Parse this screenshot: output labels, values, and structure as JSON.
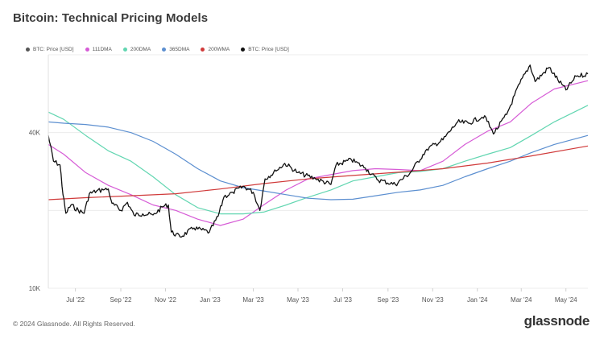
{
  "header": {
    "title": "Bitcoin: Technical Pricing Models"
  },
  "footer": {
    "copyright": "© 2024 Glassnode. All Rights Reserved.",
    "brand": "glassnode"
  },
  "colors": {
    "btc_price_legend": "#555555",
    "dma111": "#d65bd6",
    "dma200": "#62d6b1",
    "dma365": "#5c8fd0",
    "wma200": "#d03a3a",
    "btc_price": "#111111"
  },
  "chart_data": {
    "type": "line",
    "title": "Bitcoin: Technical Pricing Models",
    "yscale": "log",
    "ylim": [
      10000,
      80000
    ],
    "yticks": [
      "10K",
      "40K"
    ],
    "xticks": [
      "Jul '22",
      "Sep '22",
      "Nov '22",
      "Jan '23",
      "Mar '23",
      "May '23",
      "Jul '23",
      "Sep '23",
      "Nov '23",
      "Jan '24",
      "Mar '24",
      "May '24"
    ],
    "xlim": [
      "2022-05-25",
      "2024-05-31"
    ],
    "legend_position": "top-left",
    "grid": "horizontal",
    "legend": [
      "BTC: Price [USD]",
      "111DMA",
      "200DMA",
      "365DMA",
      "200WMA",
      "BTC: Price [USD]"
    ],
    "series": [
      {
        "name": "111DMA",
        "points": [
          [
            "2022-05-25",
            36000
          ],
          [
            "2022-06-15",
            33000
          ],
          [
            "2022-07-15",
            28000
          ],
          [
            "2022-08-15",
            25000
          ],
          [
            "2022-09-15",
            23000
          ],
          [
            "2022-10-15",
            21000
          ],
          [
            "2022-11-15",
            20000
          ],
          [
            "2022-12-15",
            18500
          ],
          [
            "2023-01-15",
            17500
          ],
          [
            "2023-02-15",
            18500
          ],
          [
            "2023-03-15",
            21000
          ],
          [
            "2023-04-15",
            24000
          ],
          [
            "2023-05-15",
            26500
          ],
          [
            "2023-06-15",
            27500
          ],
          [
            "2023-07-15",
            28500
          ],
          [
            "2023-08-15",
            29000
          ],
          [
            "2023-09-15",
            28800
          ],
          [
            "2023-10-15",
            28500
          ],
          [
            "2023-11-15",
            31000
          ],
          [
            "2023-12-15",
            36000
          ],
          [
            "2024-01-15",
            40500
          ],
          [
            "2024-02-15",
            44000
          ],
          [
            "2024-03-15",
            52000
          ],
          [
            "2024-04-15",
            59000
          ],
          [
            "2024-05-31",
            63500
          ]
        ]
      },
      {
        "name": "200DMA",
        "points": [
          [
            "2022-05-25",
            48000
          ],
          [
            "2022-06-15",
            45000
          ],
          [
            "2022-07-15",
            39000
          ],
          [
            "2022-08-15",
            34000
          ],
          [
            "2022-09-15",
            31000
          ],
          [
            "2022-10-15",
            27000
          ],
          [
            "2022-11-15",
            23000
          ],
          [
            "2022-12-15",
            20500
          ],
          [
            "2023-01-15",
            19400
          ],
          [
            "2023-02-15",
            19400
          ],
          [
            "2023-03-15",
            19700
          ],
          [
            "2023-04-15",
            21000
          ],
          [
            "2023-05-15",
            22500
          ],
          [
            "2023-06-15",
            24000
          ],
          [
            "2023-07-15",
            26000
          ],
          [
            "2023-08-15",
            27000
          ],
          [
            "2023-09-15",
            28000
          ],
          [
            "2023-10-15",
            28300
          ],
          [
            "2023-11-15",
            29000
          ],
          [
            "2023-12-15",
            31000
          ],
          [
            "2024-01-15",
            33000
          ],
          [
            "2024-02-15",
            35000
          ],
          [
            "2024-03-15",
            39000
          ],
          [
            "2024-04-15",
            44000
          ],
          [
            "2024-05-31",
            51000
          ]
        ]
      },
      {
        "name": "365DMA",
        "points": [
          [
            "2022-05-25",
            44000
          ],
          [
            "2022-06-15",
            43500
          ],
          [
            "2022-07-15",
            43000
          ],
          [
            "2022-08-15",
            42000
          ],
          [
            "2022-09-15",
            40000
          ],
          [
            "2022-10-15",
            37000
          ],
          [
            "2022-11-15",
            33000
          ],
          [
            "2022-12-15",
            29000
          ],
          [
            "2023-01-15",
            26000
          ],
          [
            "2023-02-15",
            24500
          ],
          [
            "2023-03-15",
            23800
          ],
          [
            "2023-04-15",
            23000
          ],
          [
            "2023-05-15",
            22300
          ],
          [
            "2023-06-15",
            22000
          ],
          [
            "2023-07-15",
            22100
          ],
          [
            "2023-08-15",
            22800
          ],
          [
            "2023-09-15",
            23500
          ],
          [
            "2023-10-15",
            24000
          ],
          [
            "2023-11-15",
            25000
          ],
          [
            "2023-12-15",
            27000
          ],
          [
            "2024-01-15",
            29000
          ],
          [
            "2024-02-15",
            31000
          ],
          [
            "2024-03-15",
            33500
          ],
          [
            "2024-04-15",
            36000
          ],
          [
            "2024-05-31",
            39000
          ]
        ]
      },
      {
        "name": "200WMA",
        "points": [
          [
            "2022-05-25",
            22000
          ],
          [
            "2022-07-15",
            22400
          ],
          [
            "2022-09-15",
            22800
          ],
          [
            "2022-11-15",
            23200
          ],
          [
            "2023-01-15",
            24200
          ],
          [
            "2023-03-15",
            25400
          ],
          [
            "2023-05-15",
            26500
          ],
          [
            "2023-07-15",
            27300
          ],
          [
            "2023-09-15",
            28100
          ],
          [
            "2023-11-15",
            29000
          ],
          [
            "2024-01-15",
            30500
          ],
          [
            "2024-03-15",
            32500
          ],
          [
            "2024-05-31",
            35500
          ]
        ]
      },
      {
        "name": "BTC: Price [USD]",
        "points": [
          [
            "2022-05-25",
            39000
          ],
          [
            "2022-06-01",
            31000
          ],
          [
            "2022-06-10",
            30000
          ],
          [
            "2022-06-14",
            23000
          ],
          [
            "2022-06-18",
            19500
          ],
          [
            "2022-06-25",
            21000
          ],
          [
            "2022-07-05",
            20000
          ],
          [
            "2022-07-13",
            19500
          ],
          [
            "2022-07-20",
            23200
          ],
          [
            "2022-07-30",
            23800
          ],
          [
            "2022-08-08",
            24000
          ],
          [
            "2022-08-15",
            24200
          ],
          [
            "2022-08-20",
            21300
          ],
          [
            "2022-09-01",
            20000
          ],
          [
            "2022-09-10",
            21500
          ],
          [
            "2022-09-19",
            19200
          ],
          [
            "2022-10-01",
            19400
          ],
          [
            "2022-10-15",
            19200
          ],
          [
            "2022-10-29",
            20700
          ],
          [
            "2022-11-05",
            21000
          ],
          [
            "2022-11-09",
            16500
          ],
          [
            "2022-11-21",
            15800
          ],
          [
            "2022-12-10",
            17100
          ],
          [
            "2022-12-31",
            16500
          ],
          [
            "2023-01-12",
            19000
          ],
          [
            "2023-01-20",
            22600
          ],
          [
            "2023-02-01",
            23500
          ],
          [
            "2023-02-16",
            24800
          ],
          [
            "2023-03-01",
            23500
          ],
          [
            "2023-03-10",
            20000
          ],
          [
            "2023-03-17",
            26500
          ],
          [
            "2023-04-01",
            28400
          ],
          [
            "2023-04-13",
            30400
          ],
          [
            "2023-05-01",
            28000
          ],
          [
            "2023-05-25",
            26500
          ],
          [
            "2023-06-15",
            25200
          ],
          [
            "2023-06-22",
            30000
          ],
          [
            "2023-07-13",
            31400
          ],
          [
            "2023-08-01",
            29200
          ],
          [
            "2023-08-17",
            26300
          ],
          [
            "2023-09-11",
            25200
          ],
          [
            "2023-10-01",
            27900
          ],
          [
            "2023-10-24",
            34500
          ],
          [
            "2023-11-15",
            37500
          ],
          [
            "2023-12-05",
            44000
          ],
          [
            "2023-12-20",
            43500
          ],
          [
            "2024-01-11",
            46500
          ],
          [
            "2024-01-23",
            39500
          ],
          [
            "2024-02-10",
            47000
          ],
          [
            "2024-02-28",
            62000
          ],
          [
            "2024-03-13",
            73000
          ],
          [
            "2024-03-20",
            63000
          ],
          [
            "2024-04-08",
            71500
          ],
          [
            "2024-04-20",
            64000
          ],
          [
            "2024-05-01",
            58500
          ],
          [
            "2024-05-15",
            66000
          ],
          [
            "2024-05-31",
            67500
          ]
        ]
      }
    ]
  }
}
